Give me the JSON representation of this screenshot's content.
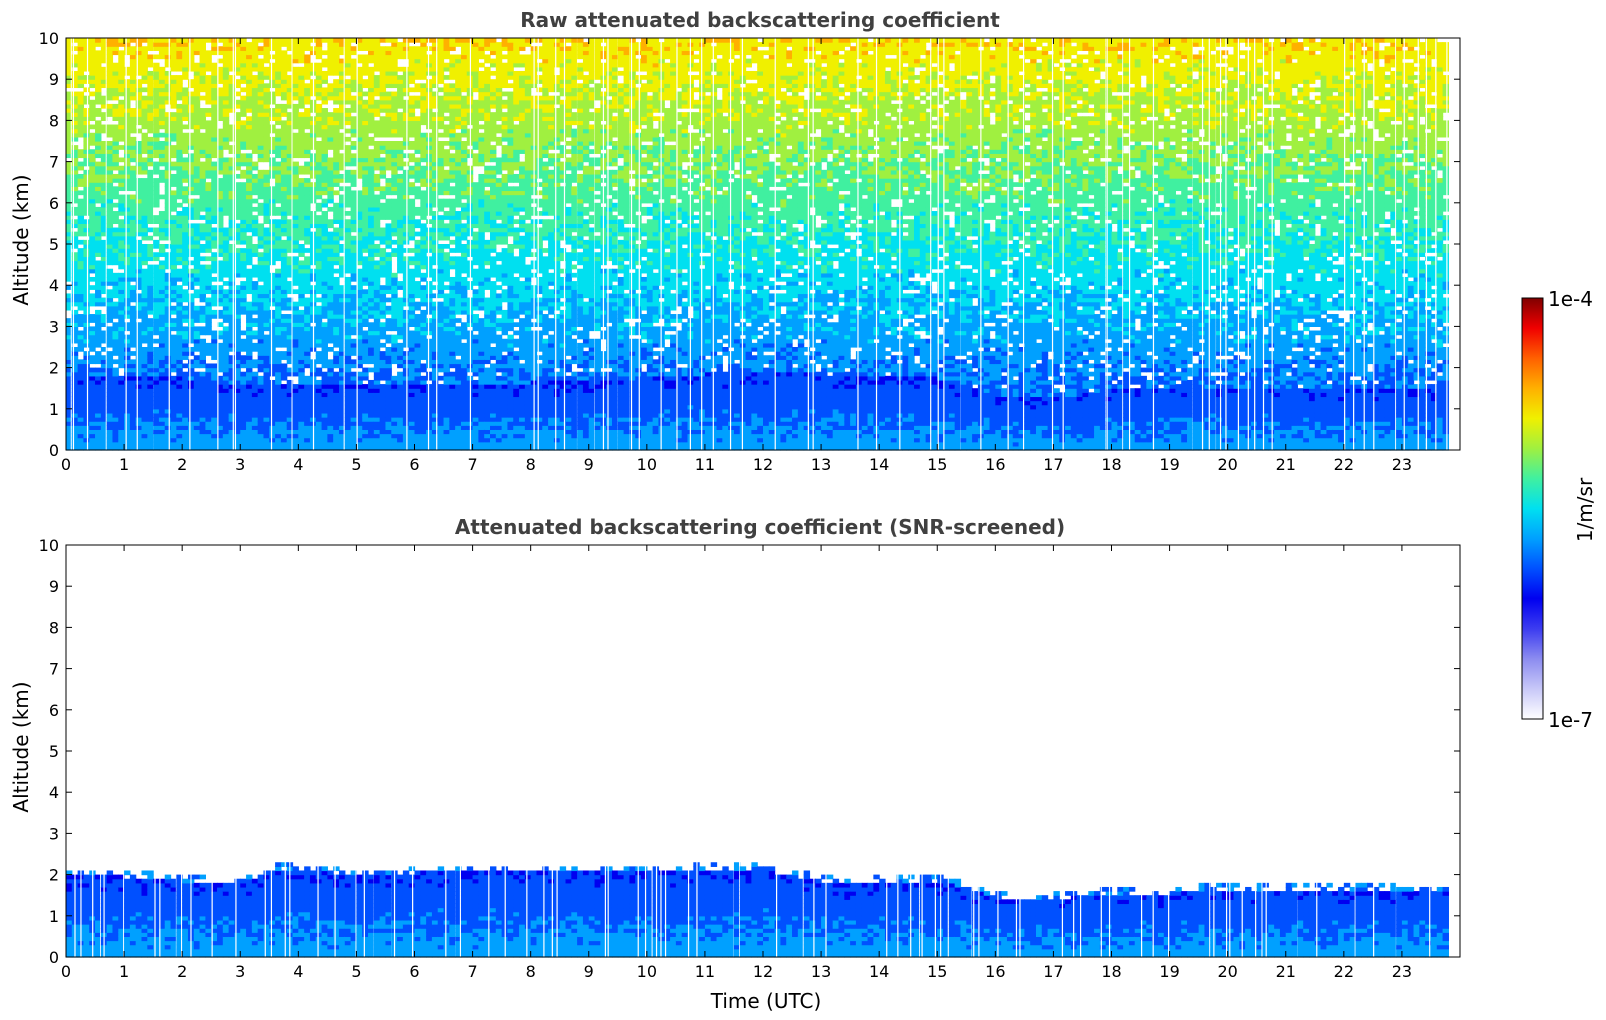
{
  "chart_data": [
    {
      "type": "heatmap",
      "title": "Raw attenuated backscattering coefficient",
      "xlabel": "",
      "ylabel": "Altitude (km)",
      "xlim": [
        0,
        24
      ],
      "ylim": [
        0,
        10
      ],
      "xticks": [
        "0",
        "1",
        "2",
        "3",
        "4",
        "5",
        "6",
        "7",
        "8",
        "9",
        "10",
        "11",
        "12",
        "13",
        "14",
        "15",
        "16",
        "17",
        "18",
        "19",
        "20",
        "21",
        "22",
        "23"
      ],
      "yticks": [
        "0",
        "1",
        "2",
        "3",
        "4",
        "5",
        "6",
        "7",
        "8",
        "9",
        "10"
      ],
      "data_end_time": 23.8,
      "boundary_layer_top_km": [
        [
          0,
          1.8
        ],
        [
          2,
          1.7
        ],
        [
          3,
          1.55
        ],
        [
          4,
          1.5
        ],
        [
          6,
          1.55
        ],
        [
          8,
          1.6
        ],
        [
          10,
          1.7
        ],
        [
          12,
          1.9
        ],
        [
          13,
          1.8
        ],
        [
          14,
          1.75
        ],
        [
          15,
          1.7
        ],
        [
          16,
          1.3
        ],
        [
          17,
          1.2
        ],
        [
          18,
          1.45
        ],
        [
          20,
          1.5
        ],
        [
          22,
          1.45
        ],
        [
          23.8,
          1.4
        ]
      ],
      "noise_signal": "high values (green-yellow) increasing with altitude above ~3 km; sparse white gaps"
    },
    {
      "type": "heatmap",
      "title": "Attenuated backscattering coefficient (SNR-screened)",
      "xlabel": "Time (UTC)",
      "ylabel": "Altitude (km)",
      "xlim": [
        0,
        24
      ],
      "ylim": [
        0,
        10
      ],
      "xticks": [
        "0",
        "1",
        "2",
        "3",
        "4",
        "5",
        "6",
        "7",
        "8",
        "9",
        "10",
        "11",
        "12",
        "13",
        "14",
        "15",
        "16",
        "17",
        "18",
        "19",
        "20",
        "21",
        "22",
        "23"
      ],
      "yticks": [
        "0",
        "1",
        "2",
        "3",
        "4",
        "5",
        "6",
        "7",
        "8",
        "9",
        "10"
      ],
      "data_end_time": 23.8,
      "boundary_layer_top_km": [
        [
          0,
          1.95
        ],
        [
          1,
          1.9
        ],
        [
          2,
          1.8
        ],
        [
          3,
          1.7
        ],
        [
          3.7,
          2.1
        ],
        [
          5,
          1.95
        ],
        [
          7,
          2.05
        ],
        [
          9,
          2.0
        ],
        [
          11,
          2.1
        ],
        [
          12,
          2.05
        ],
        [
          13,
          1.8
        ],
        [
          13.5,
          1.7
        ],
        [
          14,
          1.8
        ],
        [
          15,
          1.8
        ],
        [
          16,
          1.4
        ],
        [
          16.5,
          1.3
        ],
        [
          17,
          1.35
        ],
        [
          18,
          1.5
        ],
        [
          19,
          1.5
        ],
        [
          20,
          1.6
        ],
        [
          21,
          1.55
        ],
        [
          22,
          1.6
        ],
        [
          23.8,
          1.5
        ]
      ]
    }
  ],
  "colorbar": {
    "max_label": "1e-4",
    "min_label": "1e-7",
    "unit_label": "1/m/sr",
    "colormap": [
      "#ffffff",
      "#c8c8f8",
      "#8c8cf0",
      "#3c3cf0",
      "#0000f0",
      "#0050ff",
      "#00a0ff",
      "#00e0f0",
      "#40f0a0",
      "#a0f040",
      "#f0f000",
      "#ffb000",
      "#ff6000",
      "#f00000",
      "#800000"
    ]
  }
}
